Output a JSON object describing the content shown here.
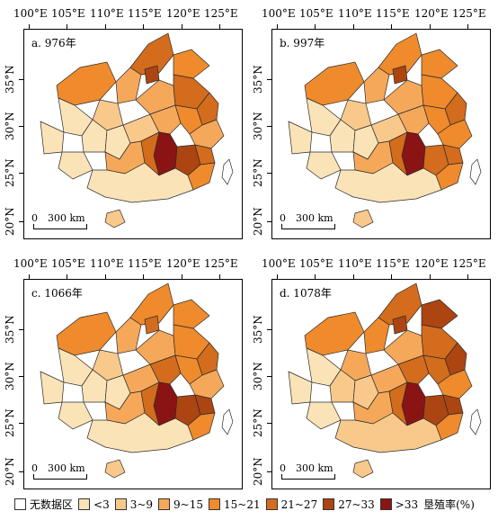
{
  "lon_labels": [
    "100°E",
    "105°E",
    "110°E",
    "115°E",
    "120°E",
    "125°E"
  ],
  "lat_labels": [
    "35°N",
    "30°N",
    "25°N",
    "20°N"
  ],
  "scale_label": "300 km",
  "scale_zero": "0",
  "panels": [
    {
      "title": "a. 976年",
      "levels": [
        4,
        3,
        5,
        4,
        6,
        2,
        3,
        5,
        5,
        1,
        1,
        1,
        2,
        3,
        7,
        4,
        3,
        1,
        1,
        3,
        5,
        6,
        5,
        4,
        1,
        2
      ]
    },
    {
      "title": "b. 997年",
      "levels": [
        4,
        3,
        4,
        4,
        6,
        2,
        3,
        4,
        5,
        1,
        1,
        1,
        2,
        3,
        7,
        4,
        4,
        1,
        1,
        3,
        5,
        5,
        5,
        4,
        1,
        2
      ]
    },
    {
      "title": "c. 1066年",
      "levels": [
        4,
        3,
        4,
        4,
        5,
        2,
        3,
        4,
        5,
        1,
        1,
        1,
        3,
        5,
        7,
        4,
        3,
        1,
        1,
        3,
        5,
        6,
        6,
        4,
        1,
        2
      ]
    },
    {
      "title": "d. 1078年",
      "levels": [
        4,
        4,
        5,
        6,
        6,
        3,
        3,
        5,
        6,
        1,
        2,
        2,
        3,
        5,
        7,
        5,
        4,
        1,
        1,
        3,
        5,
        6,
        6,
        4,
        2,
        2
      ]
    }
  ],
  "legend": {
    "items": [
      {
        "label": "无数据区",
        "color": "#ffffff"
      },
      {
        "label": "<3",
        "color": "#fbe3b8"
      },
      {
        "label": "3~9",
        "color": "#f8c98b"
      },
      {
        "label": "9~15",
        "color": "#f5a85a"
      },
      {
        "label": "15~21",
        "color": "#ef8b2c"
      },
      {
        "label": "21~27",
        "color": "#d36c1c"
      },
      {
        "label": "27~33",
        "color": "#ac4512"
      },
      {
        "label": ">33",
        "color": "#8a1414"
      }
    ],
    "title": "垦殖率(%)"
  }
}
